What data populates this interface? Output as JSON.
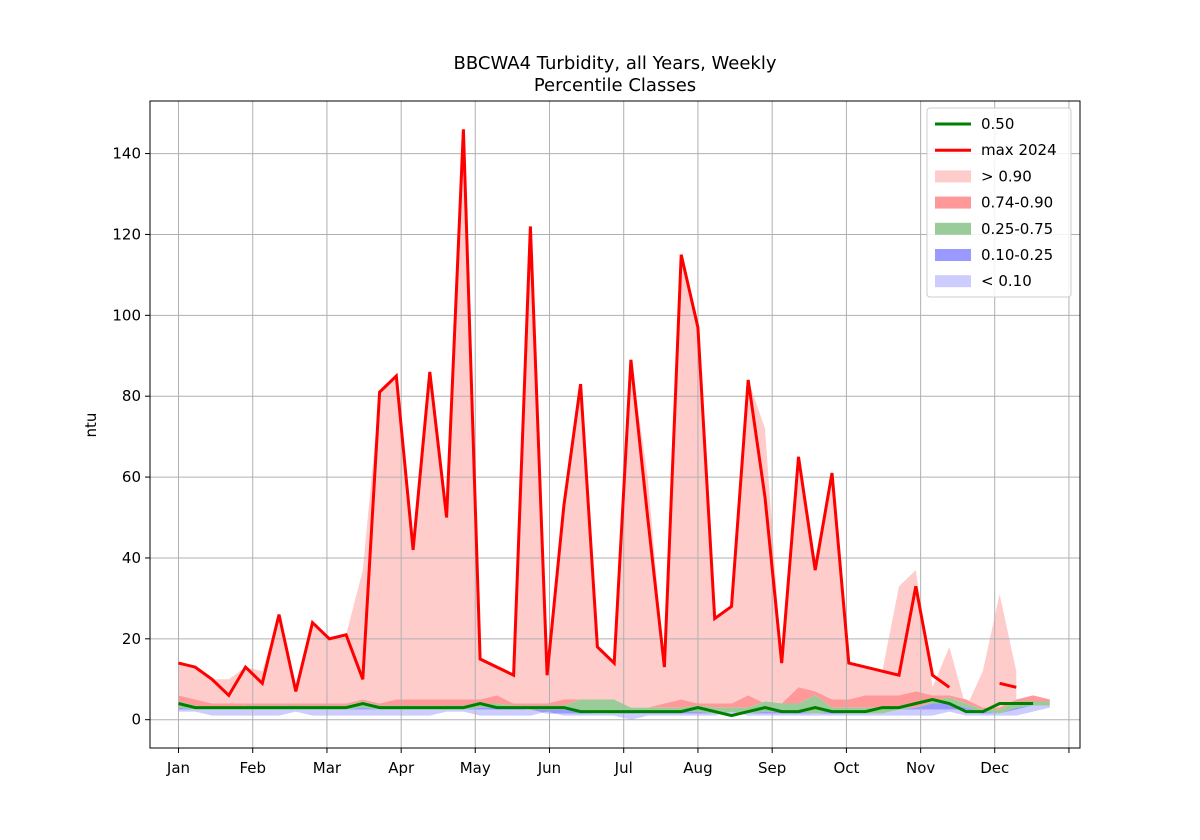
{
  "chart_data": {
    "type": "line",
    "title": "BBCWA4 Turbidity, all Years, Weekly",
    "subtitle": "Percentile Classes",
    "xlabel": "",
    "ylabel": "ntu",
    "ylim": [
      -7,
      153
    ],
    "xlim": [
      -1.7,
      53.8
    ],
    "yticks": [
      0,
      20,
      40,
      60,
      80,
      100,
      120,
      140
    ],
    "xticks": [
      {
        "w": 0,
        "label": "Jan"
      },
      {
        "w": 4.43,
        "label": "Feb"
      },
      {
        "w": 8.86,
        "label": "Mar"
      },
      {
        "w": 13.29,
        "label": "Apr"
      },
      {
        "w": 17.71,
        "label": "May"
      },
      {
        "w": 22.14,
        "label": "Jun"
      },
      {
        "w": 26.57,
        "label": "Jul"
      },
      {
        "w": 31.0,
        "label": "Aug"
      },
      {
        "w": 35.43,
        "label": "Sep"
      },
      {
        "w": 39.86,
        "label": "Oct"
      },
      {
        "w": 44.29,
        "label": "Nov"
      },
      {
        "w": 48.71,
        "label": "Dec"
      },
      {
        "w": 53.14,
        "label": ""
      }
    ],
    "grid": true,
    "legend_position": "top-right",
    "colors": {
      "median": "#008000",
      "max2024": "#ff0000",
      "gt090": "#ffcccc",
      "p74_90": "#ff9999",
      "p25_75": "#99cc99",
      "p10_25": "#9999ff",
      "lt010": "#ccccff"
    },
    "x": [
      0,
      1,
      2,
      3,
      4,
      5,
      6,
      7,
      8,
      9,
      10,
      11,
      12,
      13,
      14,
      15,
      16,
      17,
      18,
      19,
      20,
      21,
      22,
      23,
      24,
      25,
      26,
      27,
      28,
      29,
      30,
      31,
      32,
      33,
      34,
      35,
      36,
      37,
      38,
      39,
      40,
      41,
      42,
      43,
      44,
      45,
      46,
      47,
      48,
      49,
      50,
      51,
      52
    ],
    "bands": {
      "min": [
        2,
        2,
        1,
        1,
        1,
        1,
        1,
        2,
        1,
        1,
        1,
        1,
        1,
        1,
        1,
        1,
        2,
        2,
        1,
        1,
        1,
        1,
        2,
        1,
        1,
        1,
        1,
        0,
        1,
        1,
        1,
        1,
        1,
        2,
        1,
        1,
        1,
        1,
        1,
        1,
        1,
        1,
        1,
        1,
        1,
        1,
        2,
        1,
        1,
        1,
        1,
        2,
        3
      ],
      "p10": [
        2.5,
        2.5,
        2.5,
        2.5,
        2.5,
        2.5,
        2.5,
        2.5,
        2.5,
        2.5,
        2.5,
        2.5,
        2.5,
        2.5,
        2.5,
        2.5,
        2.5,
        2.5,
        2.5,
        2.5,
        2.5,
        2.5,
        1.5,
        1.5,
        1.5,
        1.5,
        1.5,
        1.5,
        1.5,
        1.5,
        1.5,
        1.5,
        1.5,
        1,
        1.5,
        1.5,
        1.5,
        1.5,
        1.5,
        1.5,
        1.5,
        1.5,
        1.5,
        2.5,
        2.5,
        2.5,
        2.5,
        2.5,
        1.5,
        1.5,
        2.5,
        3.5,
        3.5
      ],
      "p25": [
        3,
        2.5,
        2.5,
        2.5,
        2.5,
        2.5,
        2.5,
        2.5,
        2.5,
        2.5,
        2.5,
        3,
        2.5,
        2.5,
        2.5,
        2.5,
        2.5,
        2.5,
        3,
        3,
        3,
        2.5,
        2.5,
        2.5,
        2,
        1.5,
        1.5,
        2,
        2,
        2,
        2,
        2,
        1.5,
        1,
        1.5,
        2,
        2,
        2,
        1.5,
        2,
        1.5,
        1.5,
        1.5,
        2.5,
        3,
        4,
        4,
        3,
        2,
        1.5,
        3,
        3.5,
        3.5
      ],
      "p75": [
        4.5,
        3.5,
        3,
        3,
        3.5,
        3.5,
        3.5,
        3.5,
        3.5,
        3.5,
        3.5,
        4.5,
        3.5,
        3.5,
        3.5,
        3.5,
        3.5,
        3.5,
        4,
        4,
        3.5,
        3.5,
        3.5,
        3.5,
        5,
        5,
        5,
        3,
        3,
        3,
        3,
        3.5,
        3,
        3,
        3,
        4.5,
        4,
        4,
        6,
        3,
        3,
        3,
        3,
        3,
        3,
        4.5,
        5.5,
        4,
        2.5,
        2.5,
        4.5,
        4.5,
        4.5
      ],
      "p90": [
        6,
        5,
        4,
        4,
        4,
        4,
        4,
        4,
        4,
        4,
        4,
        5,
        4,
        5,
        5,
        5,
        5,
        5,
        5,
        6,
        4,
        4,
        4,
        5,
        5,
        5,
        5,
        3,
        3,
        4,
        5,
        4,
        4,
        4,
        6,
        4,
        4,
        8,
        7,
        5,
        5,
        6,
        6,
        6,
        7,
        6,
        6,
        5,
        3,
        3,
        5,
        6,
        5
      ],
      "max": [
        14,
        13,
        10,
        10,
        13,
        12,
        26,
        9,
        24,
        20,
        21,
        37,
        81,
        85,
        42,
        86,
        50,
        146,
        15,
        13,
        11,
        122,
        11,
        53,
        83,
        18,
        14,
        89,
        60,
        13,
        115,
        97,
        25,
        28,
        84,
        72,
        14,
        65,
        40,
        61,
        14,
        13,
        12,
        33,
        37,
        8,
        18,
        3,
        12,
        31,
        12,
        null,
        null
      ]
    },
    "series": [
      {
        "name": "0.50",
        "color": "#008000",
        "values": [
          4,
          3,
          3,
          3,
          3,
          3,
          3,
          3,
          3,
          3,
          3,
          4,
          3,
          3,
          3,
          3,
          3,
          3,
          4,
          3,
          3,
          3,
          3,
          3,
          2,
          2,
          2,
          2,
          2,
          2,
          2,
          3,
          2,
          1,
          2,
          3,
          2,
          2,
          3,
          2,
          2,
          2,
          3,
          3,
          4,
          5,
          4,
          2,
          2,
          4,
          4,
          4,
          null
        ]
      },
      {
        "name": "max 2024",
        "color": "#ff0000",
        "values": [
          14,
          13,
          10,
          6,
          13,
          9,
          26,
          7,
          24,
          20,
          21,
          10,
          81,
          85,
          42,
          86,
          50,
          146,
          15,
          13,
          11,
          122,
          11,
          53,
          83,
          18,
          14,
          89,
          50,
          13,
          115,
          97,
          25,
          28,
          84,
          55,
          14,
          65,
          37,
          61,
          14,
          13,
          12,
          11,
          33,
          11,
          8,
          null,
          null,
          9,
          8,
          null,
          null
        ]
      }
    ],
    "legend": [
      {
        "label": "0.50",
        "kind": "line",
        "color": "#008000"
      },
      {
        "label": "max 2024",
        "kind": "line",
        "color": "#ff0000"
      },
      {
        "label": "> 0.90",
        "kind": "patch",
        "color": "#ffcccc"
      },
      {
        "label": "0.74-0.90",
        "kind": "patch",
        "color": "#ff9999"
      },
      {
        "label": "0.25-0.75",
        "kind": "patch",
        "color": "#99cc99"
      },
      {
        "label": "0.10-0.25",
        "kind": "patch",
        "color": "#9999ff"
      },
      {
        "label": "< 0.10",
        "kind": "patch",
        "color": "#ccccff"
      }
    ]
  }
}
